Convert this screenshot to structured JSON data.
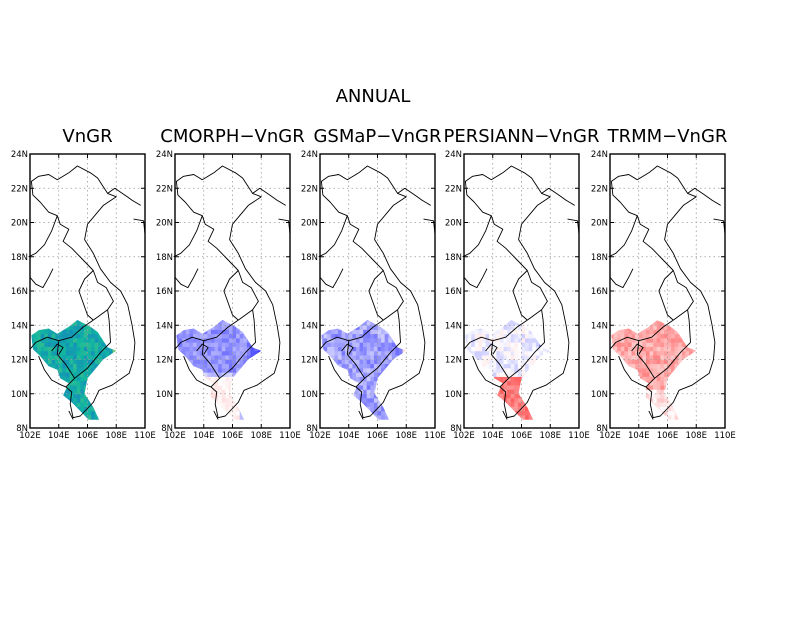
{
  "figure": {
    "title": "ANNUAL",
    "panels": [
      {
        "title": "VnGR",
        "type": "absolute"
      },
      {
        "title": "CMORPH−VnGR",
        "type": "difference",
        "bias": "wet"
      },
      {
        "title": "GSMaP−VnGR",
        "type": "difference",
        "bias": "wet-mild"
      },
      {
        "title": "PERSIANN−VnGR",
        "type": "difference",
        "bias": "mixed"
      },
      {
        "title": "TRMM−VnGR",
        "type": "difference",
        "bias": "dry"
      }
    ],
    "axes": {
      "lon_range": [
        102,
        110
      ],
      "lat_range": [
        8,
        24
      ],
      "lon_ticks": [
        "102E",
        "104E",
        "106E",
        "108E",
        "110E"
      ],
      "lat_ticks": [
        "24N",
        "22N",
        "20N",
        "18N",
        "16N",
        "14N",
        "12N",
        "10N",
        "8N"
      ],
      "grid": true
    },
    "colors": {
      "absolute_low": "#1c4fe0",
      "absolute_mid": "#10b6a0",
      "absolute_high": "#f5e23a",
      "positive": "#0000ff",
      "negative": "#ff3030"
    }
  }
}
